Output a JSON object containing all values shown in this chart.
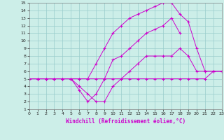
{
  "bg_color": "#cceee8",
  "grid_color": "#99cccc",
  "line_color": "#cc00cc",
  "xlabel": "Windchill (Refroidissement éolien,°C)",
  "xlim": [
    0,
    23
  ],
  "ylim": [
    1,
    15
  ],
  "xticks": [
    0,
    1,
    2,
    3,
    4,
    5,
    6,
    7,
    8,
    9,
    10,
    11,
    12,
    13,
    14,
    15,
    16,
    17,
    18,
    19,
    20,
    21,
    22,
    23
  ],
  "yticks": [
    1,
    2,
    3,
    4,
    5,
    6,
    7,
    8,
    9,
    10,
    11,
    12,
    13,
    14,
    15
  ],
  "line1_x": [
    0,
    1,
    2,
    3,
    4,
    5,
    6,
    7,
    8,
    9,
    10,
    11,
    12,
    13,
    14,
    15,
    16,
    17,
    18,
    19,
    20,
    21,
    22,
    23
  ],
  "line1_y": [
    5,
    5,
    5,
    5,
    5,
    5,
    5,
    5,
    5,
    5,
    5,
    5,
    5,
    5,
    5,
    5,
    5,
    5,
    5,
    5,
    5,
    5,
    6,
    6
  ],
  "line2_x": [
    0,
    1,
    2,
    3,
    4,
    5,
    6,
    7,
    8,
    9,
    10,
    11,
    12,
    13,
    14,
    15,
    16,
    17,
    18
  ],
  "line2_y": [
    5,
    5,
    5,
    5,
    5,
    5,
    3.5,
    2,
    3,
    5,
    7.5,
    8,
    9,
    10,
    11,
    11.5,
    12,
    13,
    11
  ],
  "line3_x": [
    0,
    1,
    2,
    3,
    4,
    5,
    6,
    7,
    8,
    9,
    10,
    11,
    12,
    13,
    14,
    15,
    16,
    17,
    18,
    19,
    20,
    21,
    22,
    23
  ],
  "line3_y": [
    5,
    5,
    5,
    5,
    5,
    5,
    4,
    3,
    2,
    2,
    4,
    5,
    6,
    7,
    8,
    8,
    8,
    8,
    9,
    8,
    6,
    6,
    6,
    6
  ],
  "line4_x": [
    0,
    1,
    2,
    3,
    4,
    5,
    6,
    7,
    8,
    9,
    10,
    11,
    12,
    13,
    14,
    15,
    16,
    17,
    18,
    19,
    20,
    21,
    22,
    23
  ],
  "line4_y": [
    5,
    5,
    5,
    5,
    5,
    5,
    5,
    5,
    7,
    9,
    11,
    12,
    13,
    13.5,
    14,
    14.5,
    15,
    15,
    13.5,
    12.5,
    9,
    6,
    6,
    6
  ]
}
